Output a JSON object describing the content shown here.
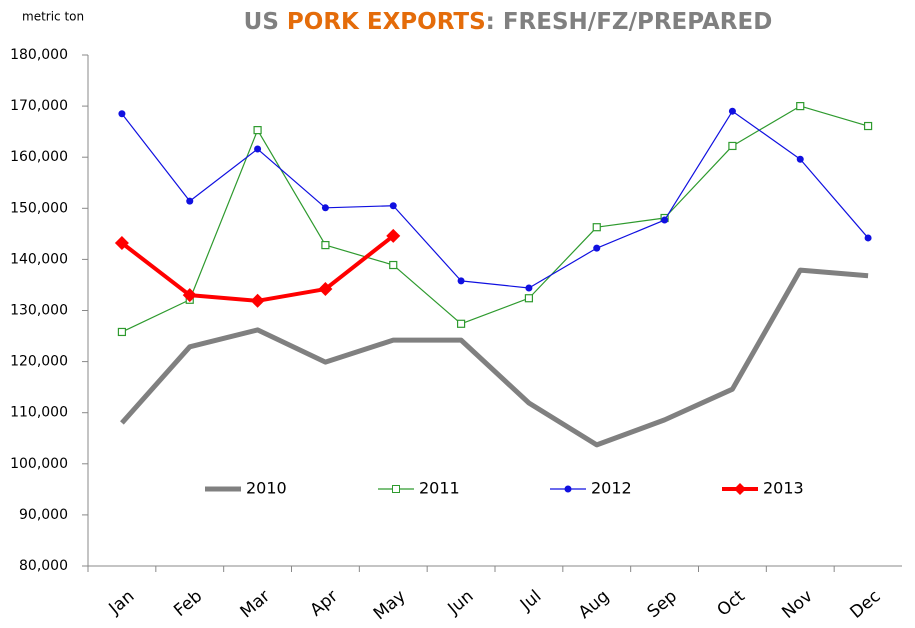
{
  "chart_data": {
    "type": "line",
    "title_parts": [
      "US",
      "PORK EXPORTS",
      ": FRESH/FZ/PREPARED"
    ],
    "title_colors": [
      "#808080",
      "#e46c0a",
      "#808080"
    ],
    "y_label": "metric ton",
    "categories": [
      "Jan",
      "Feb",
      "Mar",
      "Apr",
      "May",
      "Jun",
      "Jul",
      "Aug",
      "Sep",
      "Oct",
      "Nov",
      "Dec"
    ],
    "ylim": [
      80000,
      180000
    ],
    "yticks": [
      {
        "value": 80000,
        "label": "80,000"
      },
      {
        "value": 90000,
        "label": "90,000"
      },
      {
        "value": 100000,
        "label": "100,000"
      },
      {
        "value": 110000,
        "label": "110,000"
      },
      {
        "value": 120000,
        "label": "120,000"
      },
      {
        "value": 130000,
        "label": "130,000"
      },
      {
        "value": 140000,
        "label": "140,000"
      },
      {
        "value": 150000,
        "label": "150,000"
      },
      {
        "value": 160000,
        "label": "160,000"
      },
      {
        "value": 170000,
        "label": "170,000"
      },
      {
        "value": 180000,
        "label": "180,000"
      }
    ],
    "grid": false,
    "legend": "bottom",
    "series": [
      {
        "name": "2010",
        "color": "#808080",
        "width": 5,
        "marker": "none",
        "values": [
          108000,
          122900,
          126200,
          119900,
          124200,
          124200,
          111900,
          103700,
          108600,
          114600,
          137900,
          136800
        ]
      },
      {
        "name": "2011",
        "color": "#2e9a2e",
        "width": 1.2,
        "marker": "square-open",
        "values": [
          125800,
          132100,
          165300,
          142800,
          138900,
          127400,
          132400,
          146300,
          148100,
          162200,
          170000,
          166100
        ]
      },
      {
        "name": "2012",
        "color": "#1010e0",
        "width": 1.2,
        "marker": "circle",
        "values": [
          168500,
          151400,
          161600,
          150100,
          150500,
          135800,
          134400,
          142200,
          147700,
          169000,
          159600,
          144200
        ]
      },
      {
        "name": "2013",
        "color": "#ff0000",
        "width": 4,
        "marker": "diamond",
        "values": [
          143200,
          133000,
          131900,
          134200,
          144600,
          null,
          null,
          null,
          null,
          null,
          null,
          null
        ]
      }
    ]
  }
}
